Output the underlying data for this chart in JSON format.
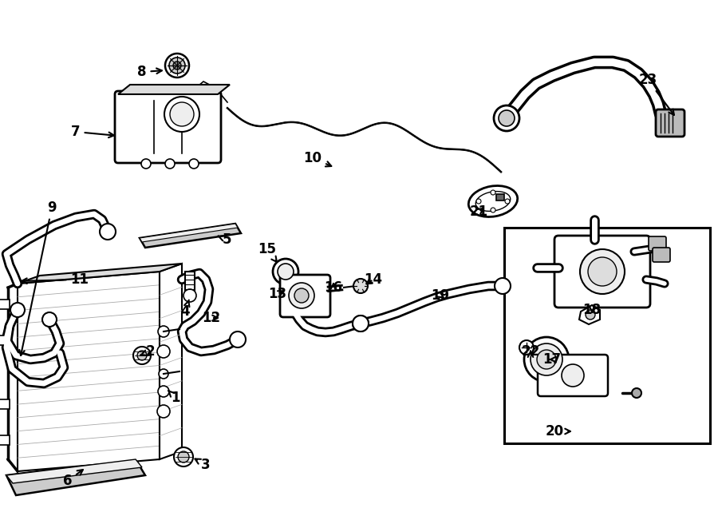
{
  "bg_color": "#ffffff",
  "line_color": "#000000",
  "fig_width": 9.0,
  "fig_height": 6.61,
  "dpi": 100,
  "label_positions": {
    "1": [
      238,
      498,
      220,
      490
    ],
    "2": [
      192,
      438,
      175,
      440
    ],
    "3": [
      260,
      578,
      240,
      572
    ],
    "4": [
      233,
      388,
      238,
      378
    ],
    "5": [
      285,
      298,
      270,
      295
    ],
    "6": [
      88,
      600,
      108,
      582
    ],
    "7": [
      97,
      162,
      130,
      168
    ],
    "8": [
      178,
      88,
      210,
      88
    ],
    "9": [
      67,
      258,
      85,
      268
    ],
    "10": [
      395,
      195,
      415,
      210
    ],
    "11": [
      103,
      348,
      118,
      358
    ],
    "12": [
      268,
      398,
      280,
      395
    ],
    "13": [
      352,
      365,
      360,
      358
    ],
    "14": [
      470,
      348,
      468,
      355
    ],
    "15": [
      338,
      310,
      350,
      322
    ],
    "16": [
      415,
      358,
      418,
      348
    ],
    "17": [
      695,
      448,
      698,
      445
    ],
    "18": [
      745,
      385,
      748,
      395
    ],
    "19": [
      555,
      368,
      558,
      378
    ],
    "20": [
      698,
      538,
      740,
      538
    ],
    "21": [
      602,
      262,
      610,
      252
    ],
    "22": [
      668,
      438,
      672,
      438
    ],
    "23": [
      815,
      98,
      862,
      112
    ]
  }
}
